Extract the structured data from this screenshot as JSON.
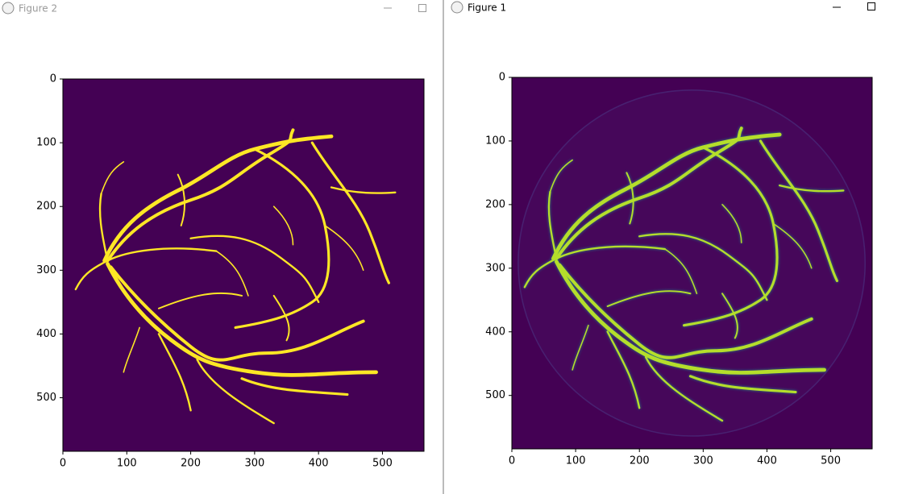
{
  "windows": [
    {
      "title": "Figure 2",
      "xlim": [
        0,
        565
      ],
      "ylim": [
        584,
        0
      ],
      "xticks": [
        0,
        100,
        200,
        300,
        400,
        500
      ],
      "yticks": [
        0,
        100,
        200,
        300,
        400,
        500
      ]
    },
    {
      "title": "Figure 1",
      "xlim": [
        0,
        565
      ],
      "ylim": [
        584,
        0
      ],
      "xticks": [
        0,
        100,
        200,
        300,
        400,
        500
      ],
      "yticks": [
        0,
        100,
        200,
        300,
        400,
        500
      ]
    }
  ]
}
